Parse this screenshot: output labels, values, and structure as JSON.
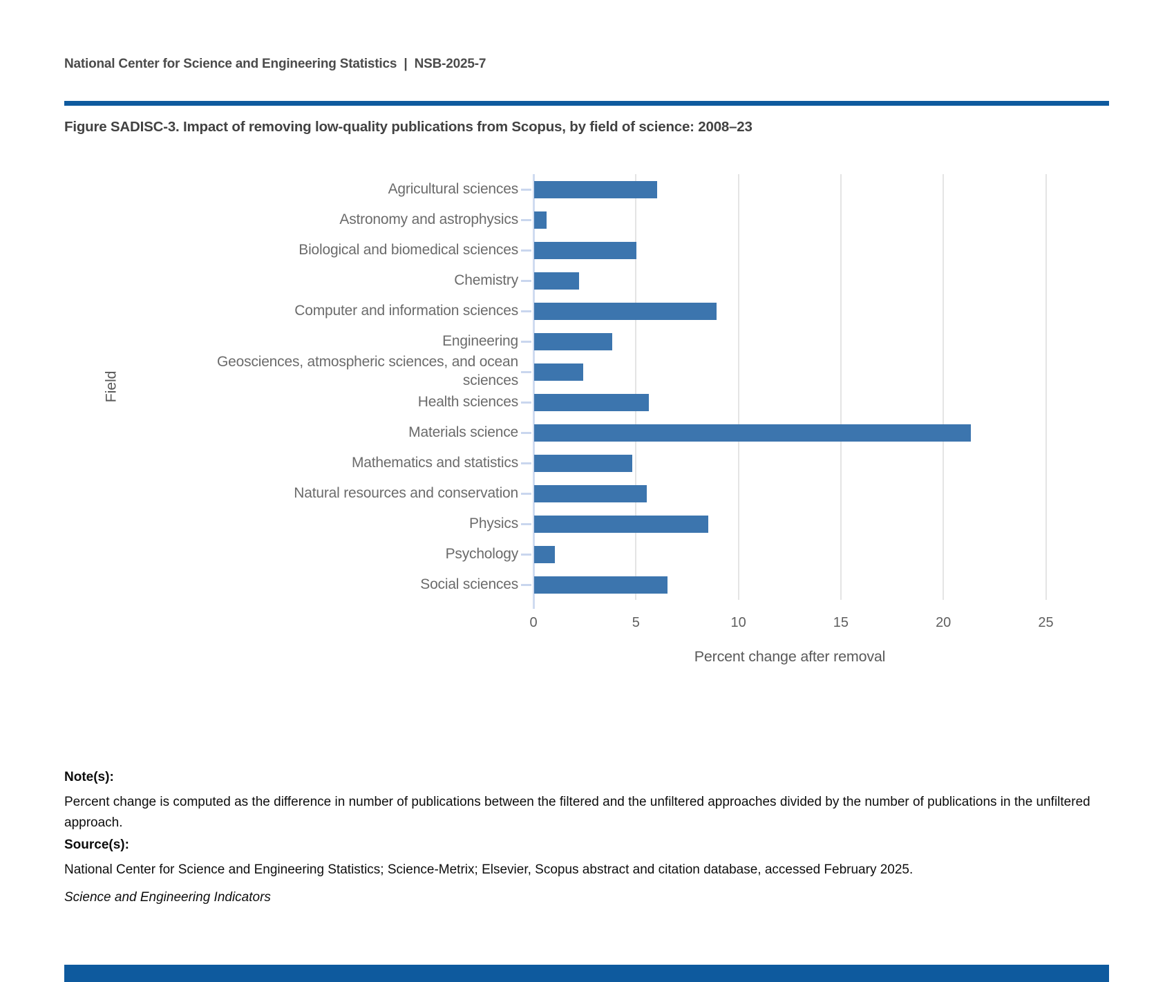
{
  "header": {
    "text": "National Center for Science and Engineering Statistics  |  NSB-2025-7"
  },
  "figure": {
    "title": "Figure SADISC-3. Impact of removing low-quality publications from Scopus, by field of science: 2008–23"
  },
  "chart_data": {
    "type": "bar",
    "orientation": "horizontal",
    "title": "Figure SADISC-3. Impact of removing low-quality publications from Scopus, by field of science: 2008–23",
    "categories": [
      "Agricultural sciences",
      "Astronomy and astrophysics",
      "Biological and biomedical sciences",
      "Chemistry",
      "Computer and information sciences",
      "Engineering",
      "Geosciences, atmospheric sciences, and ocean sciences",
      "Health sciences",
      "Materials science",
      "Mathematics and statistics",
      "Natural resources and conservation",
      "Physics",
      "Psychology",
      "Social sciences"
    ],
    "values": [
      6.0,
      0.6,
      5.0,
      2.2,
      8.9,
      3.8,
      2.4,
      5.6,
      21.3,
      4.8,
      5.5,
      8.5,
      1.0,
      6.5
    ],
    "xlabel": "Percent change after removal",
    "ylabel": "Field",
    "xlim": [
      0,
      25
    ],
    "xticks": [
      0,
      5,
      10,
      15,
      20,
      25
    ],
    "grid": true,
    "legend": "none"
  },
  "notes": {
    "notes_heading": "Note(s):",
    "notes_body": "Percent change is computed as the difference in number of publications between the filtered and the unfiltered approaches divided by the number of publications in the unfiltered approach.",
    "sources_heading": "Source(s):",
    "sources_body": "National Center for Science and Engineering Statistics; Science-Metrix; Elsevier, Scopus abstract and citation database, accessed February 2025.",
    "publication": "Science and Engineering Indicators"
  },
  "colors": {
    "bar_blue": "#3C75AE",
    "rule_blue": "#0E5A9E",
    "gridline_gray": "#e4e4e4",
    "axis_light_blue": "#cfdbf0"
  }
}
